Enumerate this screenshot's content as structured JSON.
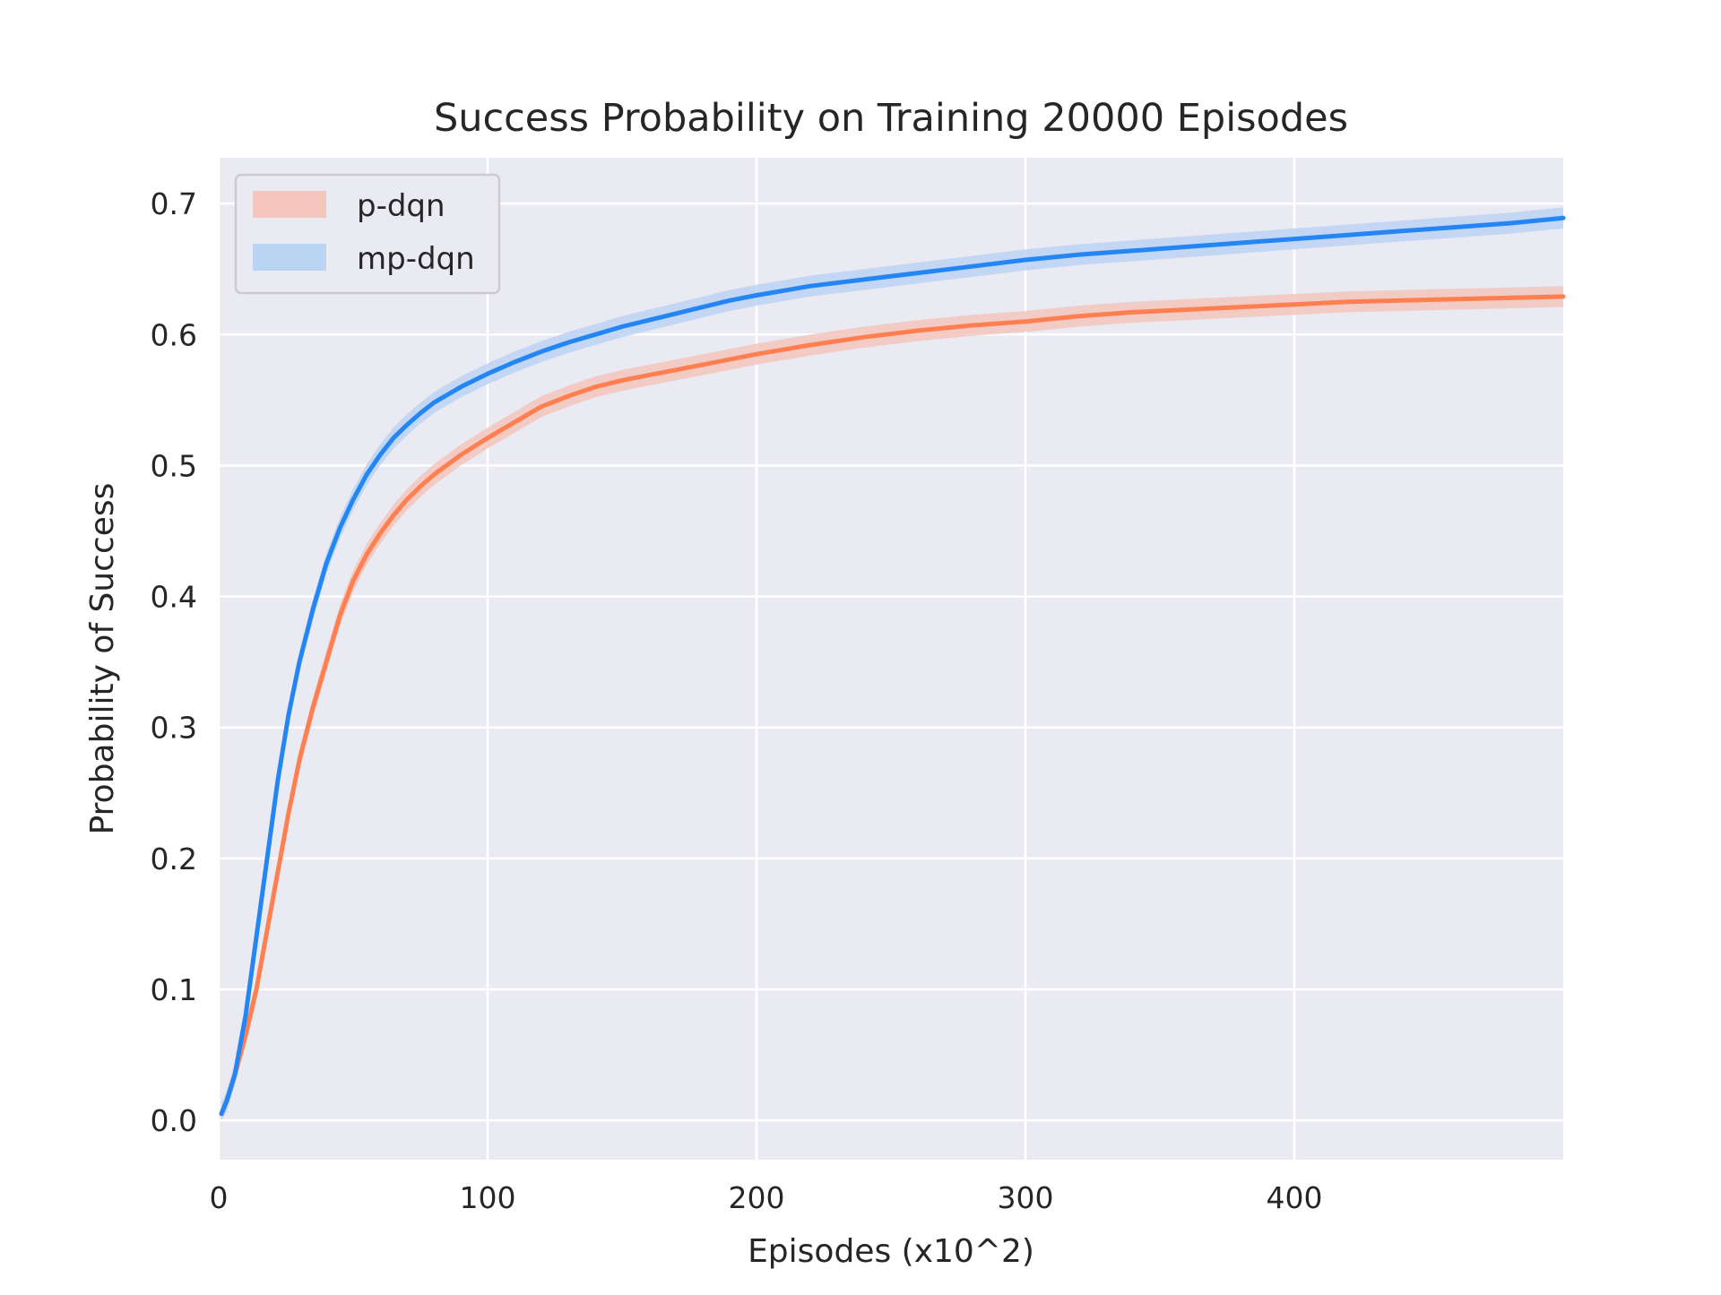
{
  "chart_data": {
    "type": "line",
    "title": "Success Probability on Training 20000 Episodes",
    "xlabel": "Episodes (x10^2)",
    "ylabel": "Probability of Success",
    "xlim": [
      0,
      500
    ],
    "ylim": [
      -0.03,
      0.735
    ],
    "x_ticks": [
      0,
      100,
      200,
      300,
      400
    ],
    "x_tick_labels": [
      "0",
      "100",
      "200",
      "300",
      "400"
    ],
    "y_ticks": [
      0.0,
      0.1,
      0.2,
      0.3,
      0.4,
      0.5,
      0.6,
      0.7
    ],
    "y_tick_labels": [
      "0.0",
      "0.1",
      "0.2",
      "0.3",
      "0.4",
      "0.5",
      "0.6",
      "0.7"
    ],
    "grid": true,
    "legend_position": "top-left",
    "series": [
      {
        "name": "p-dqn",
        "line_color": "#ff7f50",
        "band_color": "#f4c6bd",
        "band_width": 0.008,
        "x": [
          1,
          3,
          6,
          10,
          14,
          18,
          22,
          26,
          30,
          35,
          40,
          45,
          50,
          55,
          60,
          65,
          70,
          75,
          80,
          90,
          100,
          110,
          120,
          130,
          140,
          150,
          160,
          170,
          180,
          190,
          200,
          220,
          240,
          260,
          280,
          300,
          320,
          340,
          360,
          380,
          400,
          420,
          440,
          460,
          480,
          500
        ],
        "y": [
          0.005,
          0.015,
          0.035,
          0.065,
          0.1,
          0.145,
          0.19,
          0.235,
          0.275,
          0.315,
          0.35,
          0.385,
          0.412,
          0.432,
          0.448,
          0.462,
          0.474,
          0.484,
          0.493,
          0.508,
          0.521,
          0.533,
          0.545,
          0.553,
          0.56,
          0.565,
          0.569,
          0.573,
          0.577,
          0.581,
          0.585,
          0.592,
          0.598,
          0.603,
          0.607,
          0.61,
          0.614,
          0.617,
          0.619,
          0.621,
          0.623,
          0.625,
          0.626,
          0.627,
          0.628,
          0.629
        ]
      },
      {
        "name": "mp-dqn",
        "line_color": "#2486f5",
        "band_color": "#bcd4f4",
        "band_width": 0.008,
        "x": [
          1,
          3,
          6,
          10,
          14,
          18,
          22,
          26,
          30,
          35,
          40,
          45,
          50,
          55,
          60,
          65,
          70,
          75,
          80,
          90,
          100,
          110,
          120,
          130,
          140,
          150,
          160,
          170,
          180,
          190,
          200,
          220,
          240,
          260,
          280,
          300,
          320,
          340,
          360,
          380,
          400,
          420,
          440,
          460,
          480,
          500
        ],
        "y": [
          0.005,
          0.015,
          0.035,
          0.08,
          0.14,
          0.2,
          0.26,
          0.31,
          0.35,
          0.39,
          0.425,
          0.452,
          0.474,
          0.493,
          0.508,
          0.521,
          0.531,
          0.54,
          0.548,
          0.56,
          0.57,
          0.579,
          0.587,
          0.594,
          0.6,
          0.606,
          0.611,
          0.616,
          0.621,
          0.626,
          0.63,
          0.637,
          0.642,
          0.647,
          0.652,
          0.657,
          0.661,
          0.664,
          0.667,
          0.67,
          0.673,
          0.676,
          0.679,
          0.682,
          0.685,
          0.689
        ]
      }
    ]
  }
}
